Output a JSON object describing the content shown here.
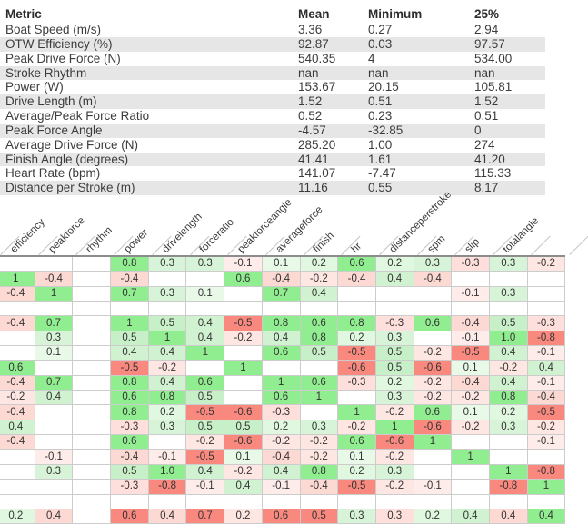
{
  "stats_table": {
    "columns": [
      "Metric",
      "Mean",
      "Minimum",
      "25%"
    ],
    "rows": [
      [
        "Boat Speed (m/s)",
        "3.36",
        "0.27",
        "2.94"
      ],
      [
        "OTW Efficiency (%)",
        "92.87",
        "0.03",
        "97.57"
      ],
      [
        "Peak Drive Force (N)",
        "540.35",
        "4",
        "534.00"
      ],
      [
        "Stroke Rhythm",
        "nan",
        "nan",
        "nan"
      ],
      [
        "Power (W)",
        "153.67",
        "20.15",
        "105.81"
      ],
      [
        "Drive Length (m)",
        "1.52",
        "0.51",
        "1.52"
      ],
      [
        "Average/Peak Force Ratio",
        "0.52",
        "0.23",
        "0.51"
      ],
      [
        "Peak Force Angle",
        "-4.57",
        "-32.85",
        "0"
      ],
      [
        "Average Drive Force (N)",
        "285.20",
        "1.00",
        "274"
      ],
      [
        "Finish Angle (degrees)",
        "41.41",
        "1.61",
        "41.20"
      ],
      [
        "Heart Rate (bpm)",
        "141.07",
        "-7.47",
        "115.33"
      ],
      [
        "Distance per Stroke (m)",
        "11.16",
        "0.55",
        "8.17"
      ]
    ]
  },
  "chart_data": {
    "type": "heatmap",
    "title": "",
    "columns": [
      "efficiency",
      "peakforce",
      "rhythm",
      "power",
      "drivelength",
      "forceratio",
      "peakforceangle",
      "averageforce",
      "finish",
      "hr",
      "distanceperstroke",
      "spm",
      "slip",
      "totalangle",
      ""
    ],
    "rows": [
      [
        "",
        "",
        "",
        "0.8",
        "0.3",
        "0.3",
        "-0.1",
        "0.1",
        "0.2",
        "0.6",
        "0.2",
        "0.3",
        "-0.3",
        "0.3",
        "-0.2"
      ],
      [
        "1",
        "-0.4",
        "",
        "-0.4",
        "",
        "",
        "0.6",
        "-0.4",
        "-0.2",
        "-0.4",
        "0.4",
        "-0.4",
        "",
        "",
        ""
      ],
      [
        "-0.4",
        "1",
        "",
        "0.7",
        "0.3",
        "0.1",
        "",
        "0.7",
        "0.4",
        "",
        "",
        "",
        "-0.1",
        "0.3",
        ""
      ],
      [
        "",
        "",
        "",
        "",
        "",
        "",
        "",
        "",
        "",
        "",
        "",
        "",
        "",
        "",
        ""
      ],
      [
        "-0.4",
        "0.7",
        "",
        "1",
        "0.5",
        "0.4",
        "-0.5",
        "0.8",
        "0.6",
        "0.8",
        "-0.3",
        "0.6",
        "-0.4",
        "0.5",
        "-0.3"
      ],
      [
        "",
        "0.3",
        "",
        "0.5",
        "1",
        "0.4",
        "-0.2",
        "0.4",
        "0.8",
        "0.2",
        "0.3",
        "",
        "-0.1",
        "1.0",
        "-0.8"
      ],
      [
        "",
        "0.1",
        "",
        "0.4",
        "0.4",
        "1",
        "",
        "0.6",
        "0.5",
        "-0.5",
        "0.5",
        "-0.2",
        "-0.5",
        "0.4",
        "-0.1"
      ],
      [
        "0.6",
        "",
        "",
        "-0.5",
        "-0.2",
        "",
        "1",
        "",
        "",
        "-0.6",
        "0.5",
        "-0.6",
        "0.1",
        "-0.2",
        "0.4"
      ],
      [
        "-0.4",
        "0.7",
        "",
        "0.8",
        "0.4",
        "0.6",
        "",
        "1",
        "0.6",
        "-0.3",
        "0.2",
        "-0.2",
        "-0.4",
        "0.4",
        "-0.1"
      ],
      [
        "-0.2",
        "0.4",
        "",
        "0.6",
        "0.8",
        "0.5",
        "",
        "0.6",
        "1",
        "",
        "0.3",
        "-0.2",
        "-0.2",
        "0.8",
        "-0.4"
      ],
      [
        "-0.4",
        "",
        "",
        "0.8",
        "0.2",
        "-0.5",
        "-0.6",
        "-0.3",
        "",
        "1",
        "-0.2",
        "0.6",
        "0.1",
        "0.2",
        "-0.5"
      ],
      [
        "0.4",
        "",
        "",
        "-0.3",
        "0.3",
        "0.5",
        "0.5",
        "0.2",
        "0.3",
        "-0.2",
        "1",
        "-0.6",
        "-0.2",
        "0.3",
        "-0.2"
      ],
      [
        "-0.4",
        "",
        "",
        "0.6",
        "",
        "-0.2",
        "-0.6",
        "-0.2",
        "-0.2",
        "0.6",
        "-0.6",
        "1",
        "",
        "",
        "-0.1"
      ],
      [
        "",
        "-0.1",
        "",
        "-0.4",
        "-0.1",
        "-0.5",
        "0.1",
        "-0.4",
        "-0.2",
        "0.1",
        "-0.2",
        "",
        "1",
        "",
        ""
      ],
      [
        "",
        "0.3",
        "",
        "0.5",
        "1.0",
        "0.4",
        "-0.2",
        "0.4",
        "0.8",
        "0.2",
        "0.3",
        "",
        "",
        "1",
        "-0.8"
      ],
      [
        "",
        "",
        "",
        "-0.3",
        "-0.8",
        "-0.1",
        "0.4",
        "-0.1",
        "-0.4",
        "-0.5",
        "-0.2",
        "-0.1",
        "",
        "-0.8",
        "1"
      ],
      [
        "",
        "",
        "",
        "",
        "",
        "",
        "",
        "",
        "",
        "",
        "",
        "",
        "",
        "",
        ""
      ],
      [
        "0.2",
        "0.4",
        "",
        "0.6",
        "0.4",
        "0.7",
        "0.2",
        "0.6",
        "0.5",
        "0.3",
        "0.3",
        "0.2",
        "0.4",
        "0.4",
        "0.4"
      ]
    ],
    "row18_color_overrides": [
      "p+",
      "p-",
      "",
      "s-",
      "p-",
      "s-",
      "p-",
      "s-",
      "s-",
      "p+",
      "p-",
      "p+",
      "p+",
      "p-",
      "s+"
    ],
    "colormap_rule": "green positive / red negative; bright green at >=0.6, bright red at <=-0.5, pale tint otherwise, white for blank"
  },
  "colors": {
    "row_stripe": "#e6e6e6",
    "strong_green": "#90ee90",
    "strong_red": "#f9897e",
    "pale_green_rgb": "110,215,110",
    "pale_red_rgb": "250,128,114",
    "grid_line": "#cccccc",
    "matrix_top_border": "#8c8c8c"
  }
}
